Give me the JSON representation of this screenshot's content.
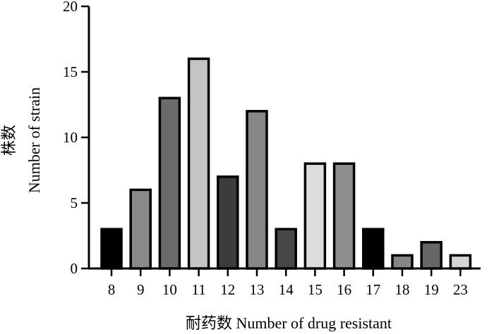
{
  "chart_data": {
    "type": "bar",
    "title": "",
    "xlabel": "耐药数 Number of drug resistant",
    "ylabel_line1": "株数",
    "ylabel_line2": "Number of strain",
    "categories": [
      "8",
      "9",
      "10",
      "11",
      "12",
      "13",
      "14",
      "15",
      "16",
      "17",
      "18",
      "19",
      "23"
    ],
    "values": [
      3,
      6,
      13,
      16,
      7,
      12,
      3,
      8,
      8,
      3,
      1,
      2,
      1
    ],
    "bar_colors": [
      "#000000",
      "#8a8a8a",
      "#6b6b6b",
      "#c4c4c4",
      "#3c3c3c",
      "#868686",
      "#474747",
      "#dcdcdc",
      "#8e8e8e",
      "#000000",
      "#878787",
      "#666666",
      "#d4d4d4"
    ],
    "ylim": [
      0,
      20
    ],
    "y_ticks": [
      0,
      5,
      10,
      15,
      20
    ],
    "grid": false,
    "legend": "none"
  }
}
